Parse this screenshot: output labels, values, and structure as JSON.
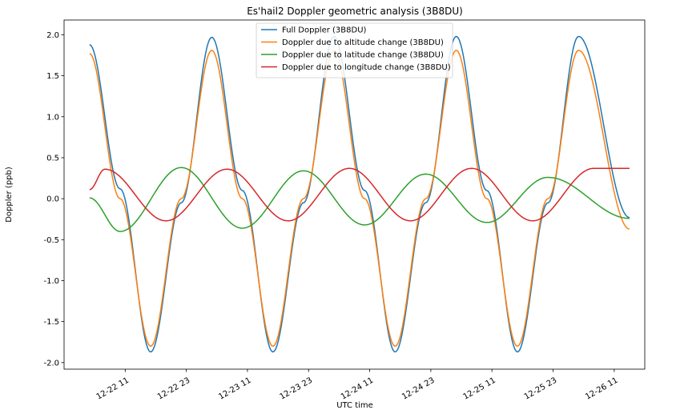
{
  "chart_data": {
    "type": "line",
    "title": "Es'hail2 Doppler geometric analysis (3B8DU)",
    "xlabel": "UTC time",
    "ylabel": "Doppler (ppb)",
    "x_unit": "date-hour (UTC), Dec 2018",
    "xlim": [
      "12-21 23:00",
      "12-26 17:00"
    ],
    "ylim": [
      -2.08,
      2.18
    ],
    "x_start": "12-22 04:00",
    "x_end": "12-26 14:00",
    "xticks": [
      "12-22 11",
      "12-22 23",
      "12-23 11",
      "12-23 23",
      "12-24 11",
      "12-24 23",
      "12-25 11",
      "12-25 23",
      "12-26 11"
    ],
    "yticks": [
      "2.0",
      "1.5",
      "1.0",
      "0.5",
      "0.0",
      "-0.5",
      "-1.0",
      "-1.5",
      "-2.0"
    ],
    "legend_position": "top-center",
    "grid": false,
    "series": [
      {
        "name": "Full Doppler (3B8DU)",
        "color": "#1f77b4",
        "description": "sinusoid, amplitude ~1.92 ppb, period ~1 day, peaks ~1.98 near 12-23 04, 12-24 04, 12-25 04, 12-26 04; troughs ~-1.87 near 12-22 16, 12-23 16, 12-24 16, 12-25 16",
        "points": [
          [
            "12-22 04",
            1.88
          ],
          [
            "12-22 10",
            0.12
          ],
          [
            "12-22 16",
            -1.87
          ],
          [
            "12-22 22",
            -0.05
          ],
          [
            "12-23 04",
            1.97
          ],
          [
            "12-23 10",
            0.1
          ],
          [
            "12-23 16",
            -1.87
          ],
          [
            "12-23 22",
            -0.05
          ],
          [
            "12-24 04",
            1.98
          ],
          [
            "12-24 10",
            0.1
          ],
          [
            "12-24 16",
            -1.87
          ],
          [
            "12-24 22",
            -0.05
          ],
          [
            "12-25 04",
            1.98
          ],
          [
            "12-25 10",
            0.1
          ],
          [
            "12-25 16",
            -1.87
          ],
          [
            "12-25 22",
            -0.05
          ],
          [
            "12-26 04",
            1.98
          ],
          [
            "12-26 14",
            -0.23
          ]
        ]
      },
      {
        "name": "Doppler due to altitude change (3B8DU)",
        "color": "#ff7f0e",
        "points": [
          [
            "12-22 04",
            1.77
          ],
          [
            "12-22 10",
            0.0
          ],
          [
            "12-22 16",
            -1.8
          ],
          [
            "12-22 22",
            0.0
          ],
          [
            "12-23 04",
            1.81
          ],
          [
            "12-23 10",
            0.0
          ],
          [
            "12-23 16",
            -1.8
          ],
          [
            "12-23 22",
            0.0
          ],
          [
            "12-24 04",
            1.81
          ],
          [
            "12-24 10",
            0.0
          ],
          [
            "12-24 16",
            -1.8
          ],
          [
            "12-24 22",
            0.0
          ],
          [
            "12-25 04",
            1.81
          ],
          [
            "12-25 10",
            0.0
          ],
          [
            "12-25 16",
            -1.8
          ],
          [
            "12-25 22",
            0.0
          ],
          [
            "12-26 04",
            1.81
          ],
          [
            "12-26 14",
            -0.37
          ]
        ]
      },
      {
        "name": "Doppler due to latitude change (3B8DU)",
        "color": "#2ca02c",
        "points": [
          [
            "12-22 04",
            0.01
          ],
          [
            "12-22 10",
            -0.4
          ],
          [
            "12-22 22",
            0.38
          ],
          [
            "12-23 10",
            -0.36
          ],
          [
            "12-23 22",
            0.34
          ],
          [
            "12-24 10",
            -0.32
          ],
          [
            "12-24 22",
            0.3
          ],
          [
            "12-25 10",
            -0.29
          ],
          [
            "12-25 22",
            0.26
          ],
          [
            "12-26 14",
            -0.24
          ]
        ]
      },
      {
        "name": "Doppler due to longitude change (3B8DU)",
        "color": "#d62728",
        "points": [
          [
            "12-22 04",
            0.11
          ],
          [
            "12-22 07",
            0.36
          ],
          [
            "12-22 19",
            -0.27
          ],
          [
            "12-23 07",
            0.36
          ],
          [
            "12-23 19",
            -0.27
          ],
          [
            "12-24 07",
            0.37
          ],
          [
            "12-24 19",
            -0.27
          ],
          [
            "12-25 07",
            0.37
          ],
          [
            "12-25 19",
            -0.27
          ],
          [
            "12-26 07",
            0.37
          ],
          [
            "12-26 14",
            0.37
          ]
        ]
      }
    ]
  }
}
